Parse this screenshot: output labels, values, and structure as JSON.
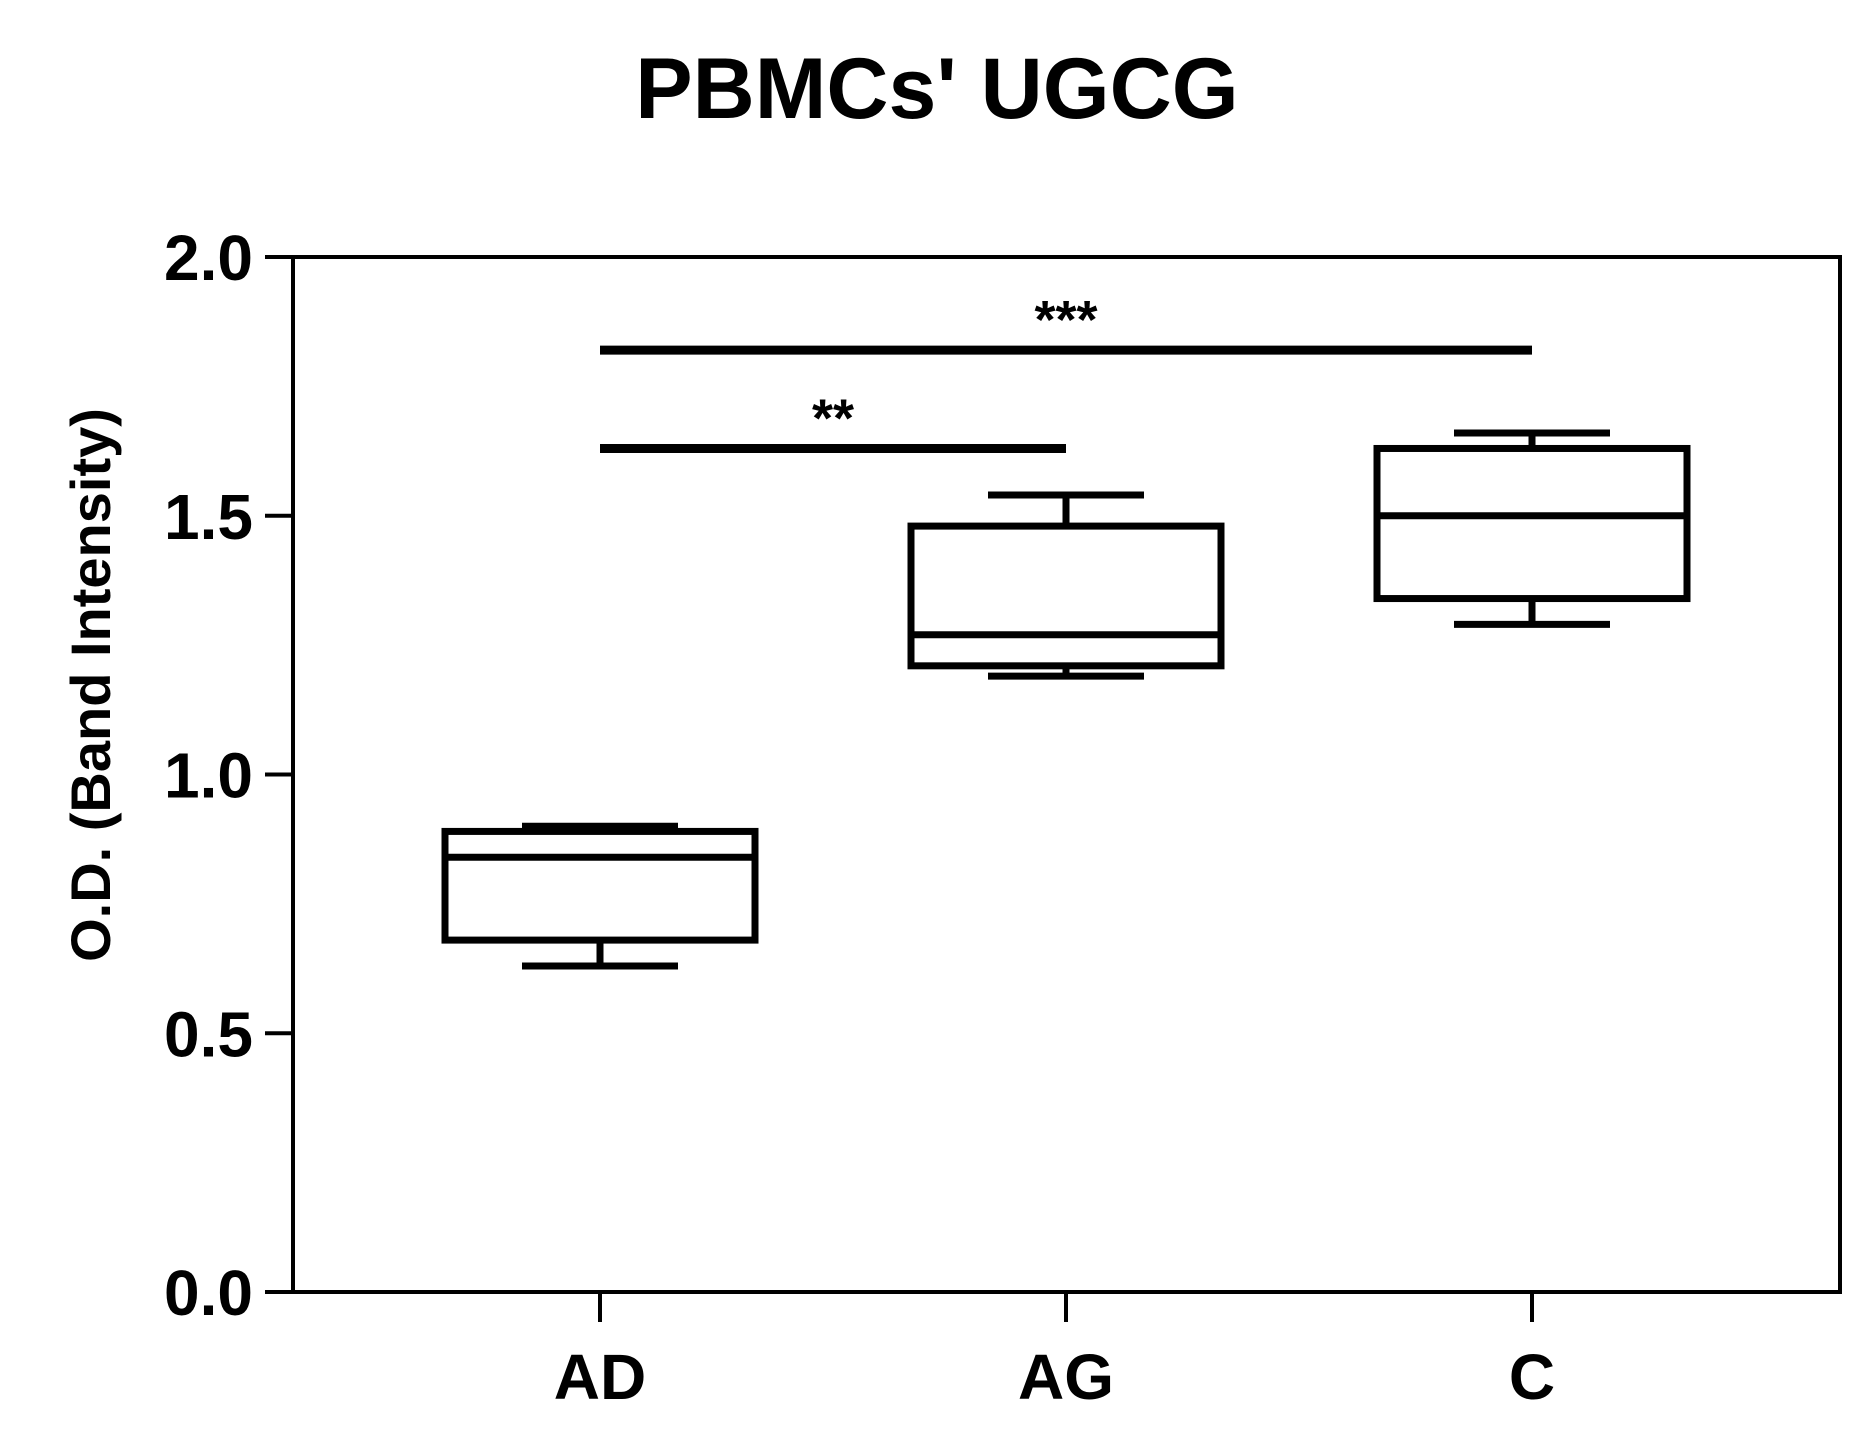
{
  "chart_data": {
    "type": "box",
    "title": "PBMCs' UGCG",
    "xlabel": "",
    "ylabel": "O.D. (Band Intensity)",
    "ylim": [
      0,
      2.0
    ],
    "yticks": [
      "0.0",
      "0.5",
      "1.0",
      "1.5",
      "2.0"
    ],
    "categories": [
      "AD",
      "AG",
      "C"
    ],
    "boxes": [
      {
        "category": "AD",
        "min": 0.63,
        "q1": 0.68,
        "median": 0.84,
        "q3": 0.89,
        "max": 0.9
      },
      {
        "category": "AG",
        "min": 1.19,
        "q1": 1.21,
        "median": 1.27,
        "q3": 1.48,
        "max": 1.54
      },
      {
        "category": "C",
        "min": 1.29,
        "q1": 1.34,
        "median": 1.5,
        "q3": 1.63,
        "max": 1.66
      }
    ],
    "significance": [
      {
        "from": "AD",
        "to": "AG",
        "y": 1.63,
        "label": "**"
      },
      {
        "from": "AD",
        "to": "C",
        "y": 1.82,
        "label": "***"
      }
    ],
    "grid": false,
    "colors": {
      "line": "#000000",
      "fill": "#ffffff"
    }
  }
}
